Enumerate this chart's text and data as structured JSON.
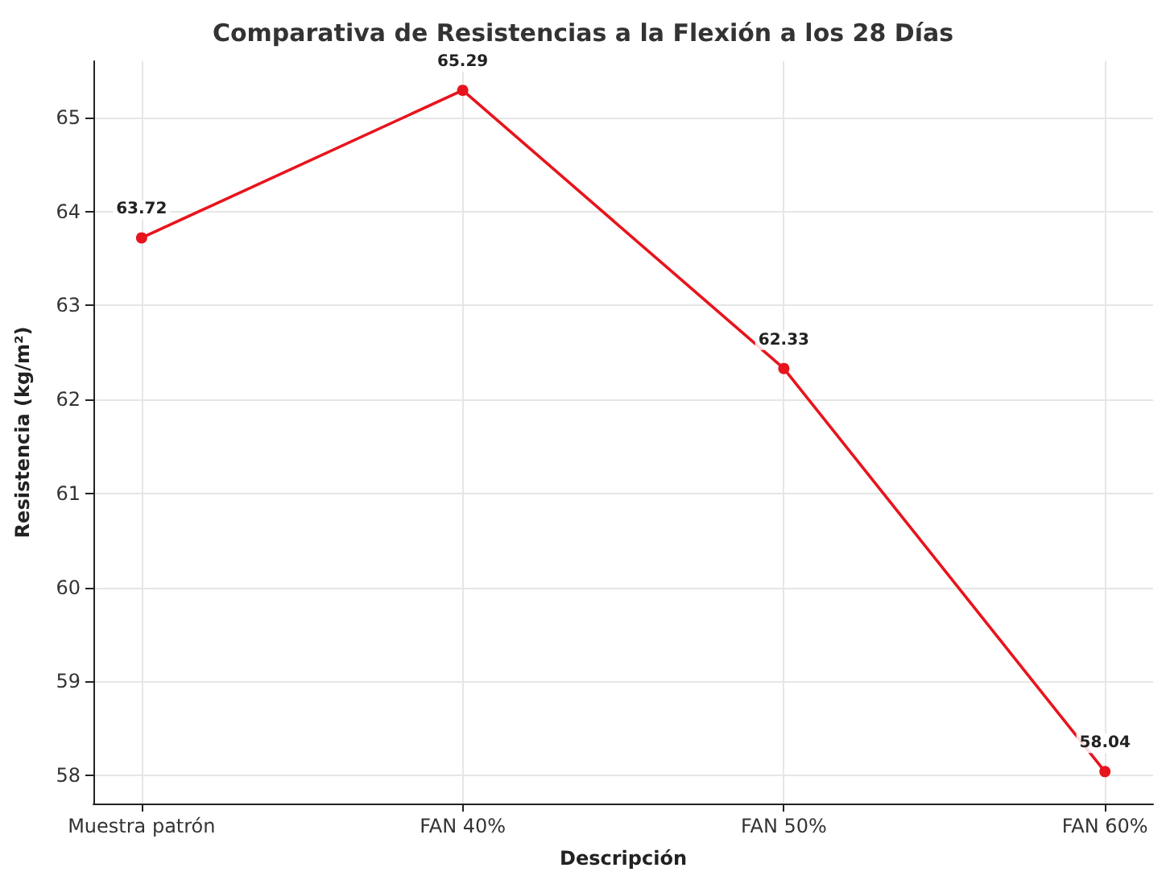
{
  "chart_data": {
    "type": "line",
    "title": "Comparativa de Resistencias a la Flexión a los 28 Días",
    "xlabel": "Descripción",
    "ylabel": "Resistencia (kg/m²)",
    "categories": [
      "Muestra patrón",
      "FAN 40%",
      "FAN 50%",
      "FAN 60%"
    ],
    "series": [
      {
        "color": "#e8141c",
        "values": [
          63.72,
          65.29,
          62.33,
          58.04
        ]
      }
    ],
    "ylim": [
      57.7,
      65.6
    ],
    "yticks": [
      58,
      59,
      60,
      61,
      62,
      63,
      64,
      65
    ],
    "grid": true,
    "marker": "circle",
    "line_style": "solid",
    "data_labels": true
  }
}
